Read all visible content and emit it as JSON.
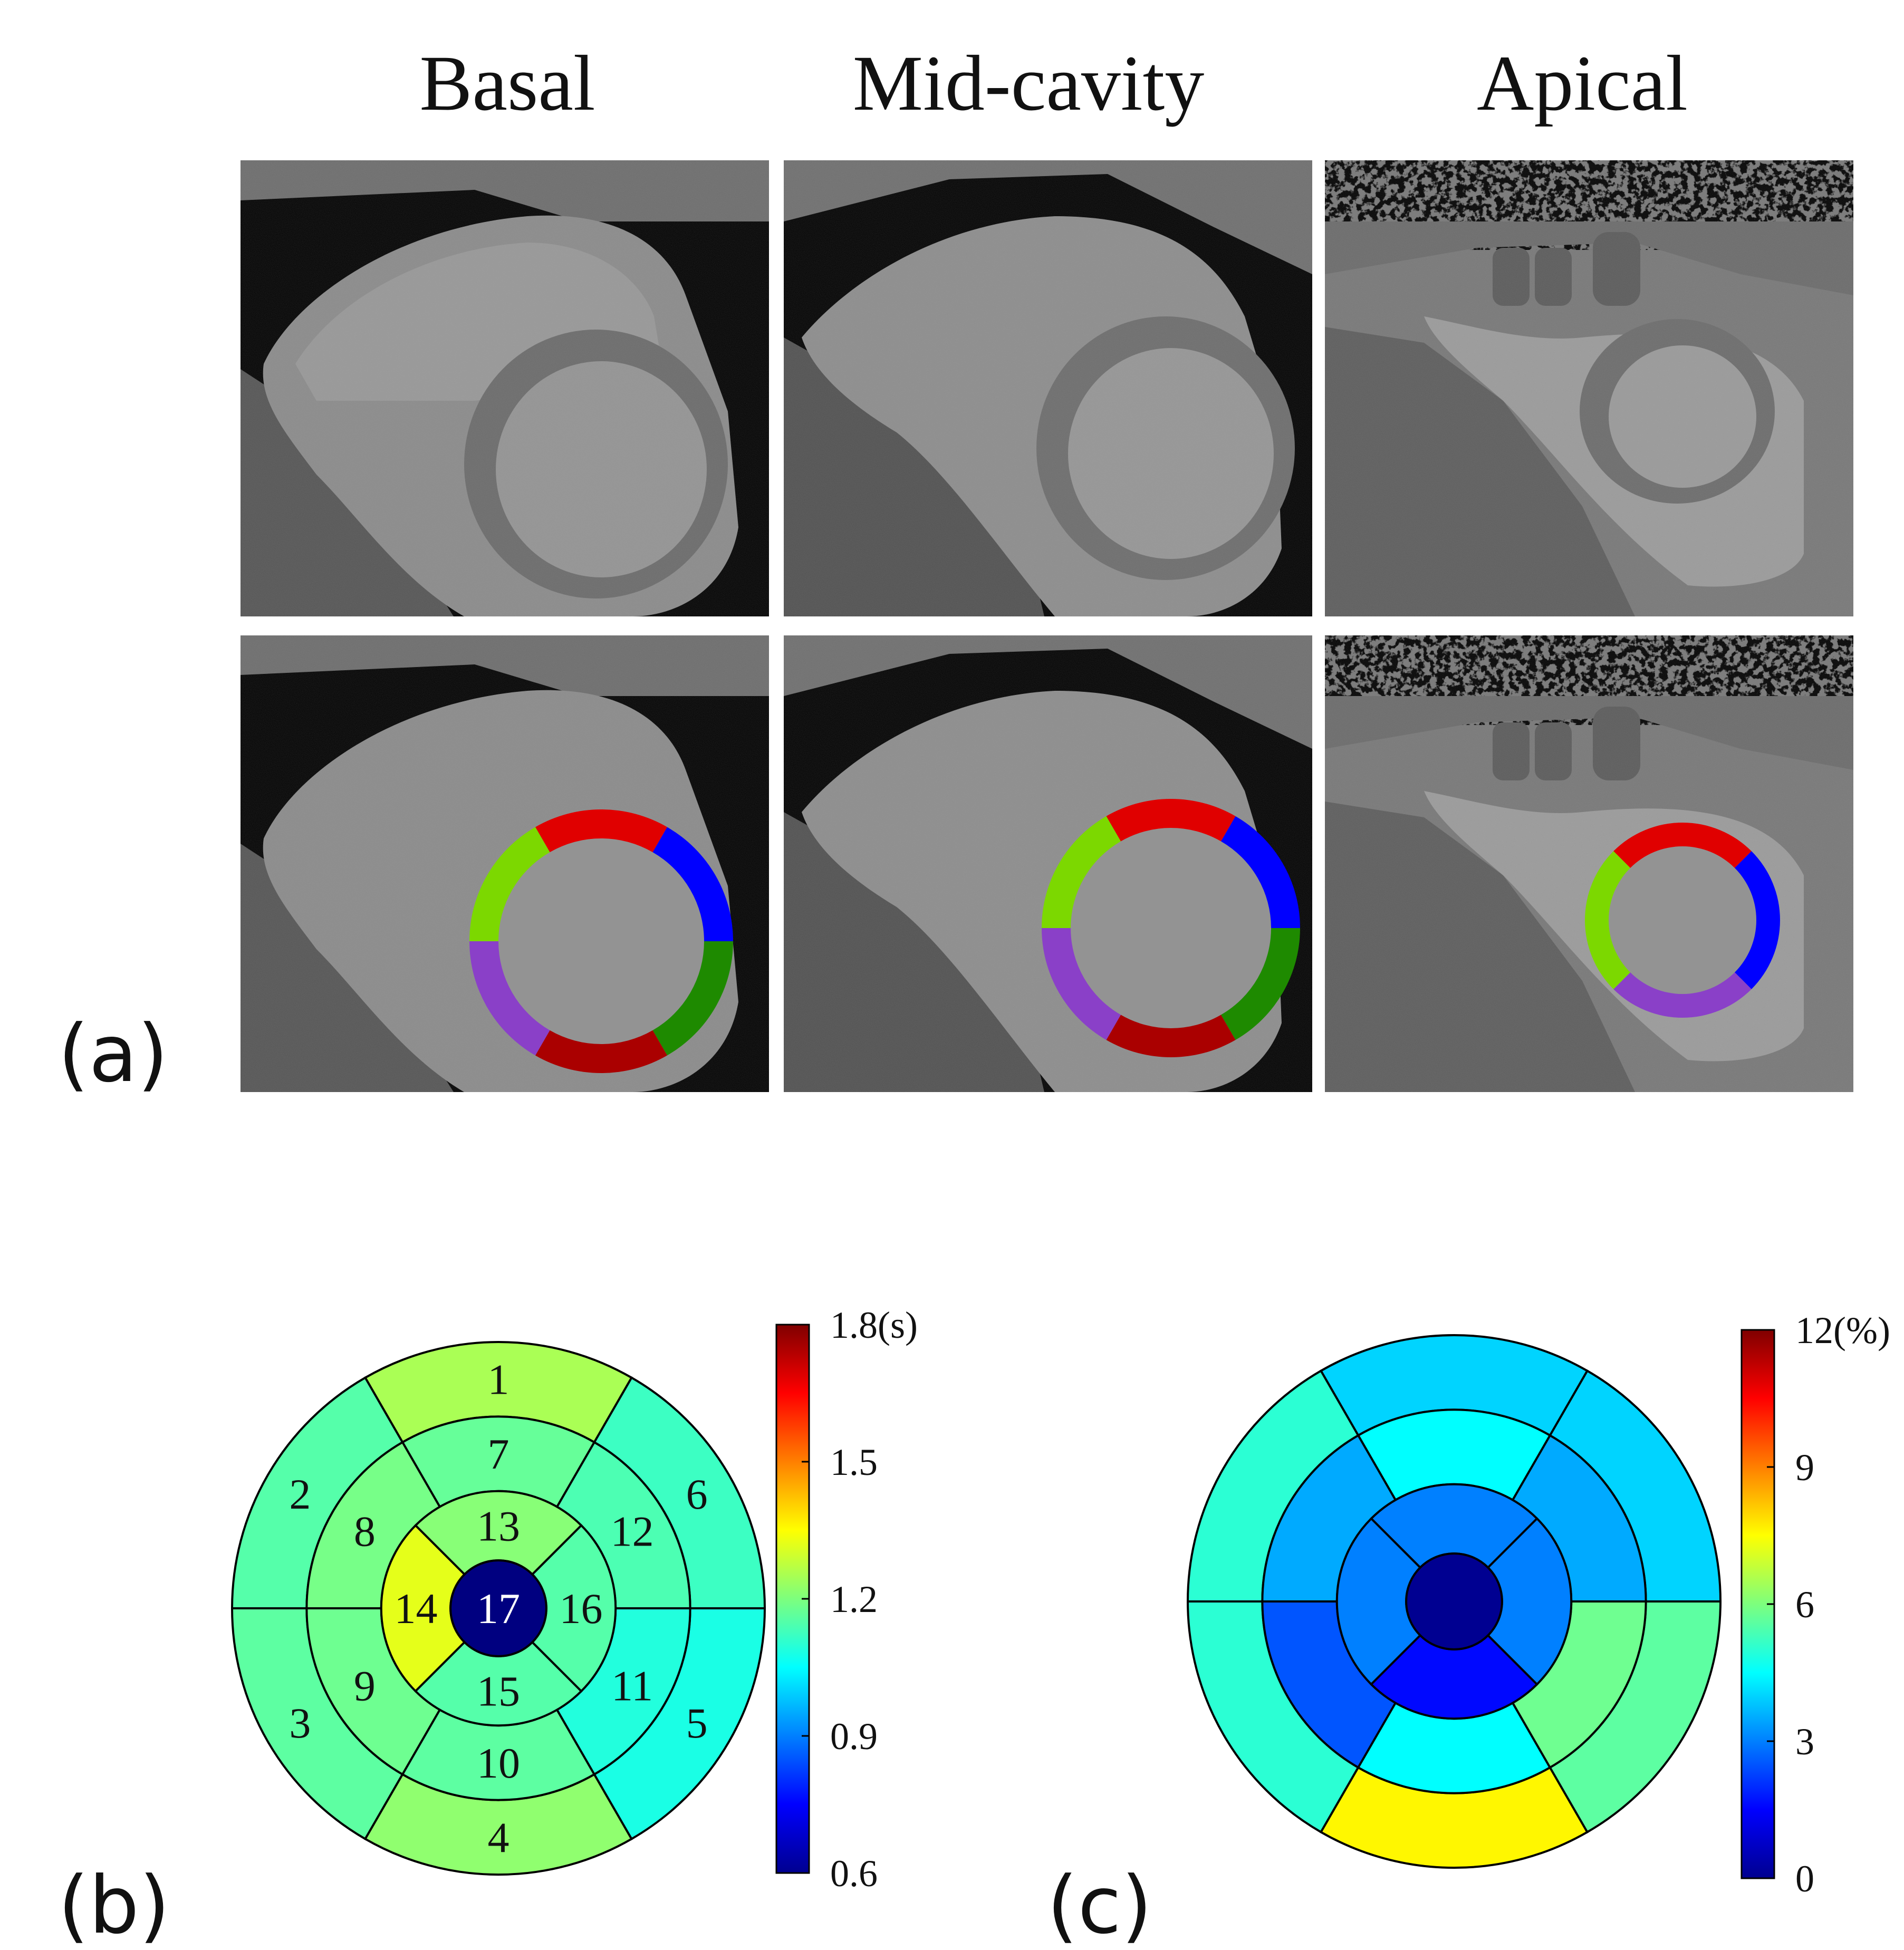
{
  "columns": {
    "basal": "Basal",
    "mid": "Mid-cavity",
    "apical": "Apical"
  },
  "panel_labels": {
    "a": "(a)",
    "b": "(b)",
    "c": "(c)"
  },
  "segment_colors": {
    "anterior": "#e00000",
    "anterolateral": "#0000ff",
    "inferolateral": "#1e8a00",
    "inferior": "#aa0000",
    "inferoseptal": "#8a40c8",
    "anteroseptal": "#7cd800"
  },
  "bullseye_b": {
    "segment_labels": [
      "1",
      "2",
      "3",
      "4",
      "5",
      "6",
      "7",
      "8",
      "9",
      "10",
      "11",
      "12",
      "13",
      "14",
      "15",
      "16",
      "17"
    ],
    "segment_values": [
      1.25,
      1.15,
      1.16,
      1.22,
      1.08,
      1.12,
      1.17,
      1.19,
      1.18,
      1.16,
      1.09,
      1.14,
      1.21,
      1.32,
      1.15,
      1.15,
      0.6
    ],
    "colorbar": {
      "min": 0.6,
      "max": 1.8,
      "ticks": [
        "1.8(s)",
        "1.5",
        "1.2",
        "0.9",
        "0.6"
      ]
    }
  },
  "bullseye_c": {
    "segment_values": [
      4.0,
      5.0,
      5.0,
      7.6,
      5.6,
      4.0,
      4.5,
      3.5,
      2.5,
      4.5,
      5.8,
      3.5,
      3.0,
      3.0,
      1.6,
      3.0,
      0.2
    ],
    "colorbar": {
      "min": 0,
      "max": 12,
      "ticks": [
        "12(%)",
        "9",
        "6",
        "3",
        "0"
      ]
    }
  }
}
